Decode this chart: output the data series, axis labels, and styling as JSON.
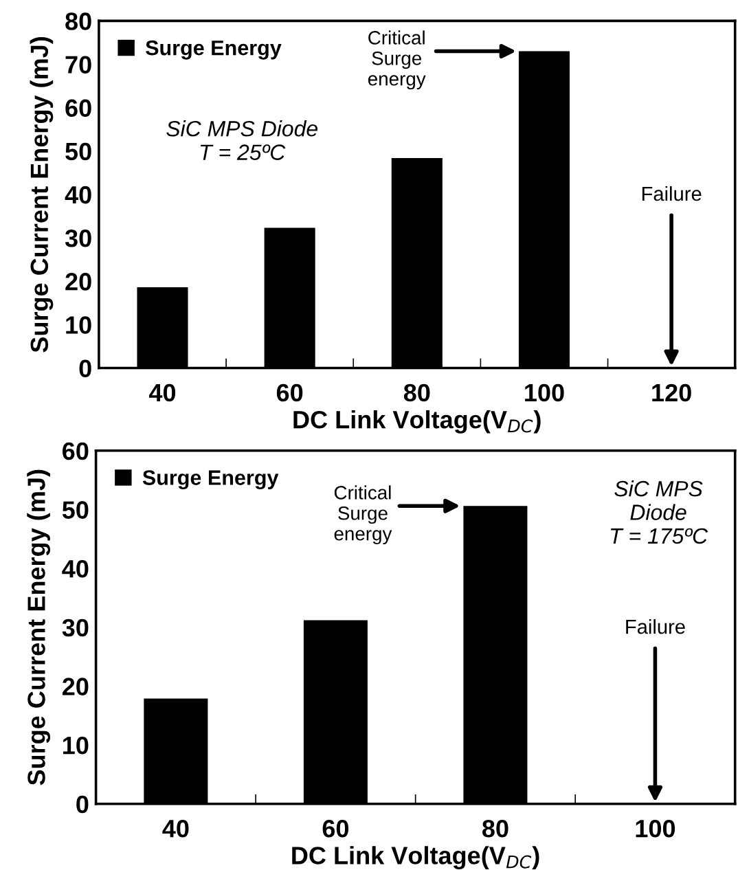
{
  "chart_data": [
    {
      "type": "bar",
      "categories": [
        "40",
        "60",
        "80",
        "100",
        "120"
      ],
      "xlabel": "DC Link Voltage(V$_{DC}$)",
      "ylabel": "Surge Current Energy (mJ)",
      "ylim": [
        0,
        80
      ],
      "yticks": [
        0,
        10,
        20,
        30,
        40,
        50,
        60,
        70,
        80
      ],
      "legend": "top left",
      "grid": false,
      "series": [
        {
          "name": "Surge Energy",
          "color": "#000000",
          "values": [
            18.6,
            32.3,
            48.4,
            73.0,
            null
          ]
        }
      ],
      "annotations": [
        "Critical\nSurge\nenergy",
        "Failure",
        "SiC MPS Diode\nT = 25ºC"
      ]
    },
    {
      "type": "bar",
      "categories": [
        "40",
        "60",
        "80",
        "100"
      ],
      "xlabel": "DC Link Voltage(V$_{DC}$)",
      "ylabel": "Surge Current Energy (mJ)",
      "ylim": [
        0,
        60
      ],
      "yticks": [
        0,
        10,
        20,
        30,
        40,
        50,
        60
      ],
      "legend": "top left",
      "grid": false,
      "series": [
        {
          "name": "Surge Energy",
          "color": "#000000",
          "values": [
            17.9,
            31.2,
            50.6,
            null
          ]
        }
      ],
      "annotations": [
        "Critical\nSurge\nenergy",
        "Failure",
        "SiC MPS\nDiode\nT = 175ºC"
      ]
    }
  ]
}
